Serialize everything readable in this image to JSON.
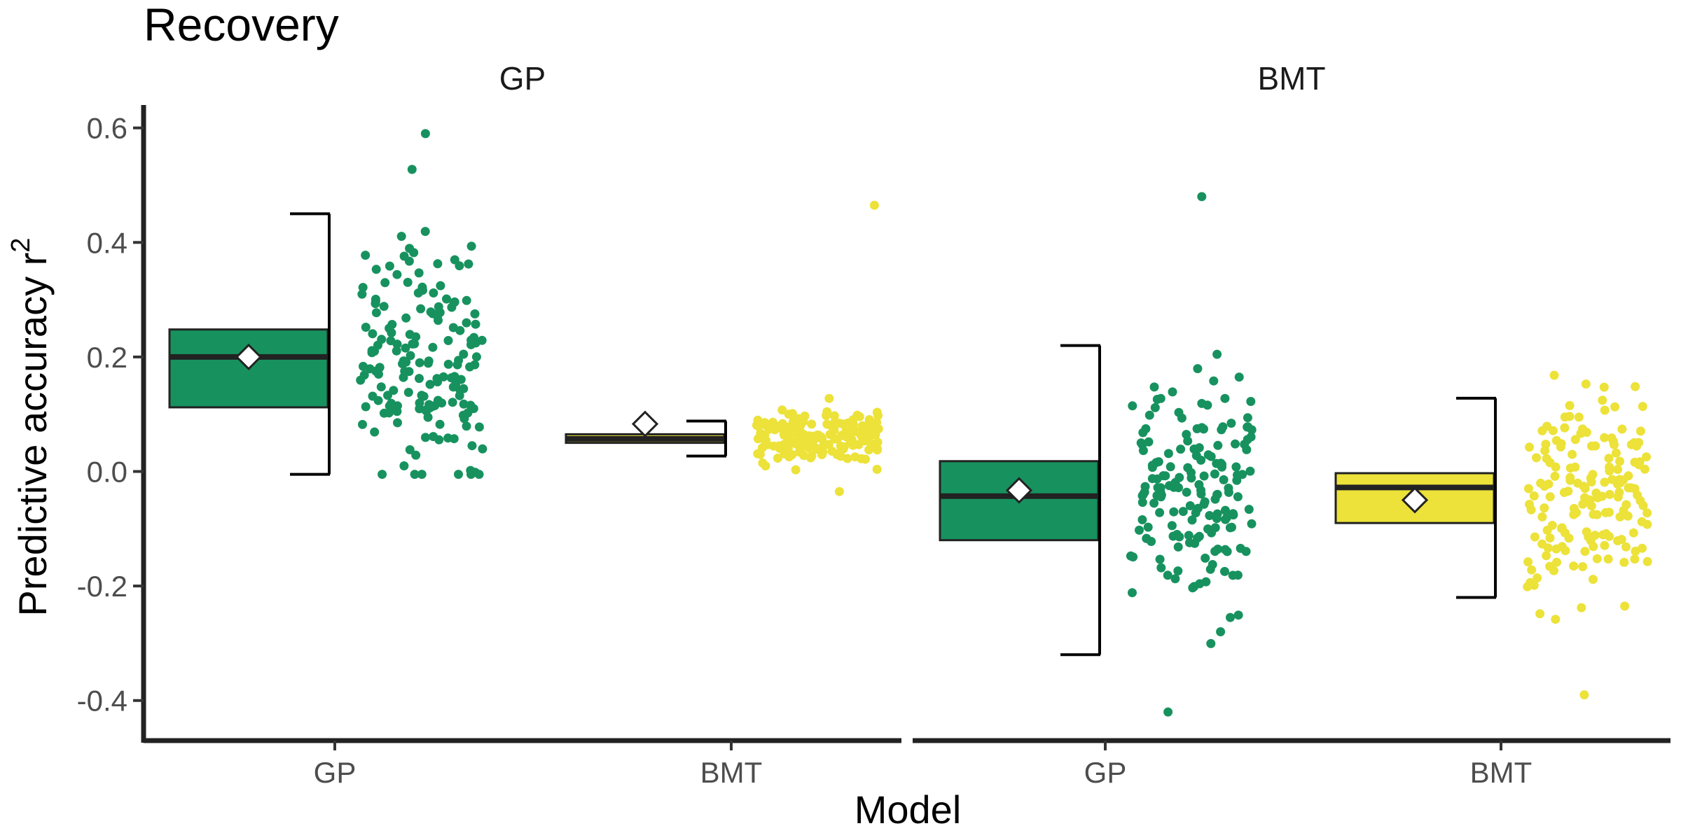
{
  "chart_data": {
    "type": "box",
    "title": "Recovery",
    "xlabel": "Model",
    "ylabel": "Predictive accuracy r",
    "ylabel_superscript": "2",
    "ylim": [
      -0.47,
      0.64
    ],
    "yticks": [
      0.6,
      0.4,
      0.2,
      0.0,
      -0.2,
      -0.4
    ],
    "ytick_labels": [
      "0.6",
      "0.4",
      "0.2",
      "0.0",
      "-0.2",
      "-0.4"
    ],
    "categories": [
      "GP",
      "BMT"
    ],
    "colors": {
      "GP": "#17925f",
      "BMT": "#ece239"
    },
    "legend": "none",
    "grid": false,
    "panels": [
      {
        "facet": "GP",
        "groups": [
          {
            "model": "GP",
            "q1": 0.112,
            "median": 0.2,
            "q3": 0.248,
            "whisker_low": -0.005,
            "whisker_high": 0.45,
            "mean": 0.2,
            "points_range": [
              -0.005,
              0.59
            ],
            "points_center": 0.185,
            "points_spread": 0.105
          },
          {
            "model": "BMT",
            "q1": 0.05,
            "median": 0.057,
            "q3": 0.065,
            "whisker_low": 0.027,
            "whisker_high": 0.088,
            "mean": 0.083,
            "points_range": [
              -0.035,
              0.465
            ],
            "points_center": 0.06,
            "points_spread": 0.025
          }
        ]
      },
      {
        "facet": "BMT",
        "groups": [
          {
            "model": "GP",
            "q1": -0.12,
            "median": -0.043,
            "q3": 0.018,
            "whisker_low": -0.32,
            "whisker_high": 0.22,
            "mean": -0.033,
            "points_range": [
              -0.42,
              0.48
            ],
            "points_center": -0.04,
            "points_spread": 0.1
          },
          {
            "model": "BMT",
            "q1": -0.09,
            "median": -0.028,
            "q3": -0.003,
            "whisker_low": -0.22,
            "whisker_high": 0.128,
            "mean": -0.05,
            "points_range": [
              -0.39,
              0.168
            ],
            "points_center": -0.04,
            "points_spread": 0.085
          }
        ]
      }
    ]
  }
}
